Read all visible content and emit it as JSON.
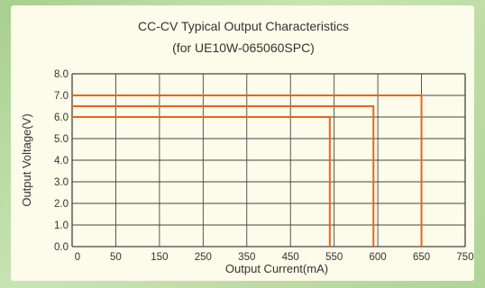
{
  "chart_data": {
    "type": "line",
    "title": "CC-CV Typical Output Characteristics",
    "subtitle": "(for UE10W-065060SPC)",
    "xlabel": "Output Current(mA)",
    "ylabel": "Output Voltage(V)",
    "x_ticks": [
      "0",
      "50",
      "150",
      "250",
      "350",
      "450",
      "550",
      "600",
      "650",
      "750"
    ],
    "y_ticks": [
      "0.0",
      "1.0",
      "2.0",
      "3.0",
      "4.0",
      "5.0",
      "6.0",
      "7.0",
      "8.0"
    ],
    "ylim": [
      0,
      8
    ],
    "grid": true,
    "series": [
      {
        "x": [
          0,
          540
        ],
        "y": [
          6.0,
          6.0
        ],
        "x_end_drop": 540
      },
      {
        "x": [
          0,
          595
        ],
        "y": [
          6.5,
          6.5
        ],
        "x_end_drop": 595
      },
      {
        "x": [
          0,
          650
        ],
        "y": [
          7.0,
          7.0
        ],
        "x_end_drop": 650
      }
    ],
    "colors": {
      "series": "#e8651a",
      "grid": "#444444",
      "background": "#fdfbea"
    }
  }
}
